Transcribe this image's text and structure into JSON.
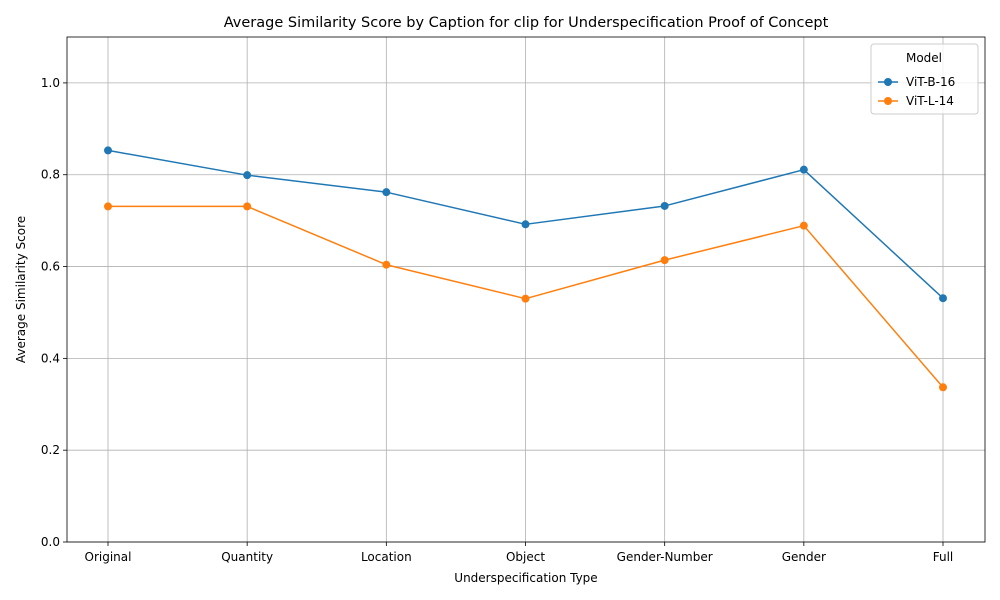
{
  "chart_data": {
    "type": "line",
    "title": "Average Similarity Score by Caption for clip for Underspecification Proof of Concept",
    "xlabel": "Underspecification Type",
    "ylabel": "Average Similarity Score",
    "categories": [
      "Original",
      "Quantity",
      "Location",
      "Object",
      "Gender-Number",
      "Gender",
      "Full"
    ],
    "ylim": [
      0,
      1.1
    ],
    "yticks": [
      "0.0",
      "0.2",
      "0.4",
      "0.6",
      "0.8",
      "1.0"
    ],
    "grid": true,
    "legend": {
      "title": "Model",
      "placement": "top-right"
    },
    "series": [
      {
        "name": "ViT-B-16",
        "color": "#1f77b4",
        "values": [
          0.853,
          0.799,
          0.762,
          0.692,
          0.732,
          0.811,
          0.531
        ]
      },
      {
        "name": "ViT-L-14",
        "color": "#ff7f0e",
        "values": [
          0.731,
          0.731,
          0.604,
          0.53,
          0.614,
          0.689,
          0.337
        ]
      }
    ]
  }
}
